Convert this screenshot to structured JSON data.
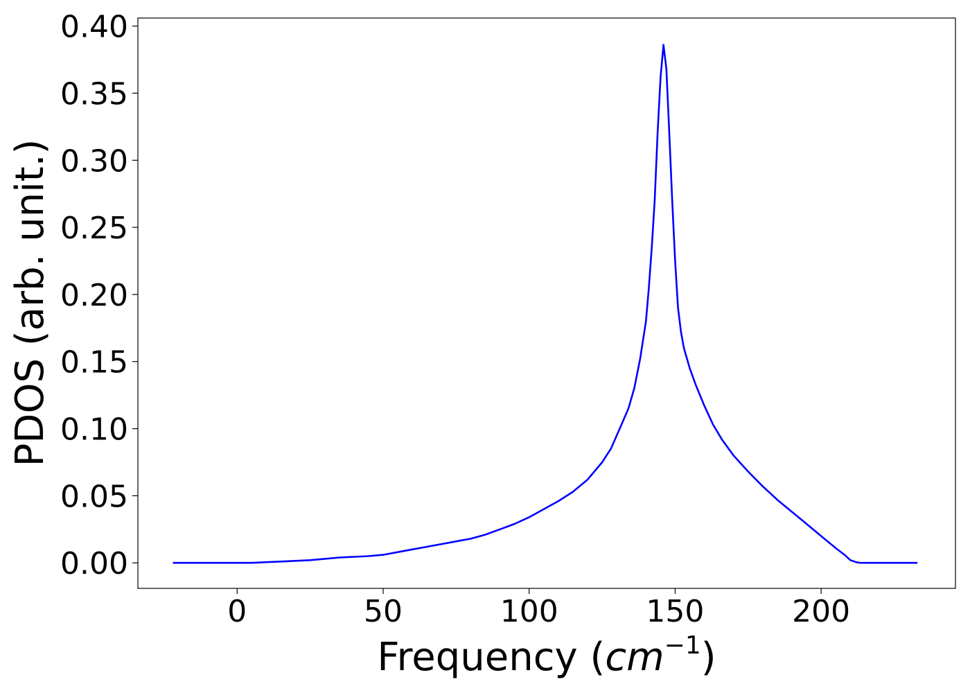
{
  "chart_data": {
    "type": "line",
    "title": "",
    "xlabel_main": "Frequency (",
    "xlabel_unit": "cm",
    "xlabel_exp": "−1",
    "xlabel_close": ")",
    "ylabel": "PDOS (arb. unit.)",
    "xlim": [
      -34,
      246
    ],
    "ylim": [
      -0.019,
      0.406
    ],
    "xticks": [
      0,
      50,
      100,
      150,
      200
    ],
    "yticks": [
      0.0,
      0.05,
      0.1,
      0.15,
      0.2,
      0.25,
      0.3,
      0.35,
      0.4
    ],
    "grid": false,
    "legend": "none",
    "series": [
      {
        "color": "#0000ff",
        "x": [
          -22,
          -10,
          0,
          5,
          10,
          15,
          20,
          25,
          30,
          35,
          40,
          45,
          50,
          55,
          60,
          65,
          70,
          75,
          80,
          85,
          90,
          95,
          100,
          105,
          110,
          115,
          120,
          125,
          128,
          131,
          134,
          136,
          138,
          140,
          141,
          142,
          143,
          144,
          145,
          146,
          147,
          148,
          149,
          150,
          151,
          152,
          153,
          155,
          157,
          160,
          163,
          166,
          170,
          175,
          180,
          185,
          190,
          195,
          200,
          205,
          208,
          210,
          212,
          213,
          214,
          215,
          216,
          218,
          220,
          225,
          233
        ],
        "y": [
          0.0,
          0.0,
          0.0,
          0.0,
          0.0005,
          0.001,
          0.0015,
          0.002,
          0.003,
          0.004,
          0.0045,
          0.005,
          0.006,
          0.008,
          0.01,
          0.012,
          0.014,
          0.016,
          0.018,
          0.021,
          0.025,
          0.029,
          0.034,
          0.04,
          0.046,
          0.053,
          0.062,
          0.075,
          0.085,
          0.1,
          0.115,
          0.13,
          0.152,
          0.18,
          0.205,
          0.235,
          0.27,
          0.32,
          0.362,
          0.386,
          0.368,
          0.32,
          0.27,
          0.225,
          0.19,
          0.172,
          0.16,
          0.145,
          0.133,
          0.117,
          0.103,
          0.092,
          0.08,
          0.068,
          0.057,
          0.047,
          0.038,
          0.029,
          0.02,
          0.011,
          0.006,
          0.002,
          0.0005,
          0.0001,
          0.0,
          0.0,
          0.0,
          0.0,
          0.0,
          0.0,
          0.0
        ]
      }
    ]
  }
}
